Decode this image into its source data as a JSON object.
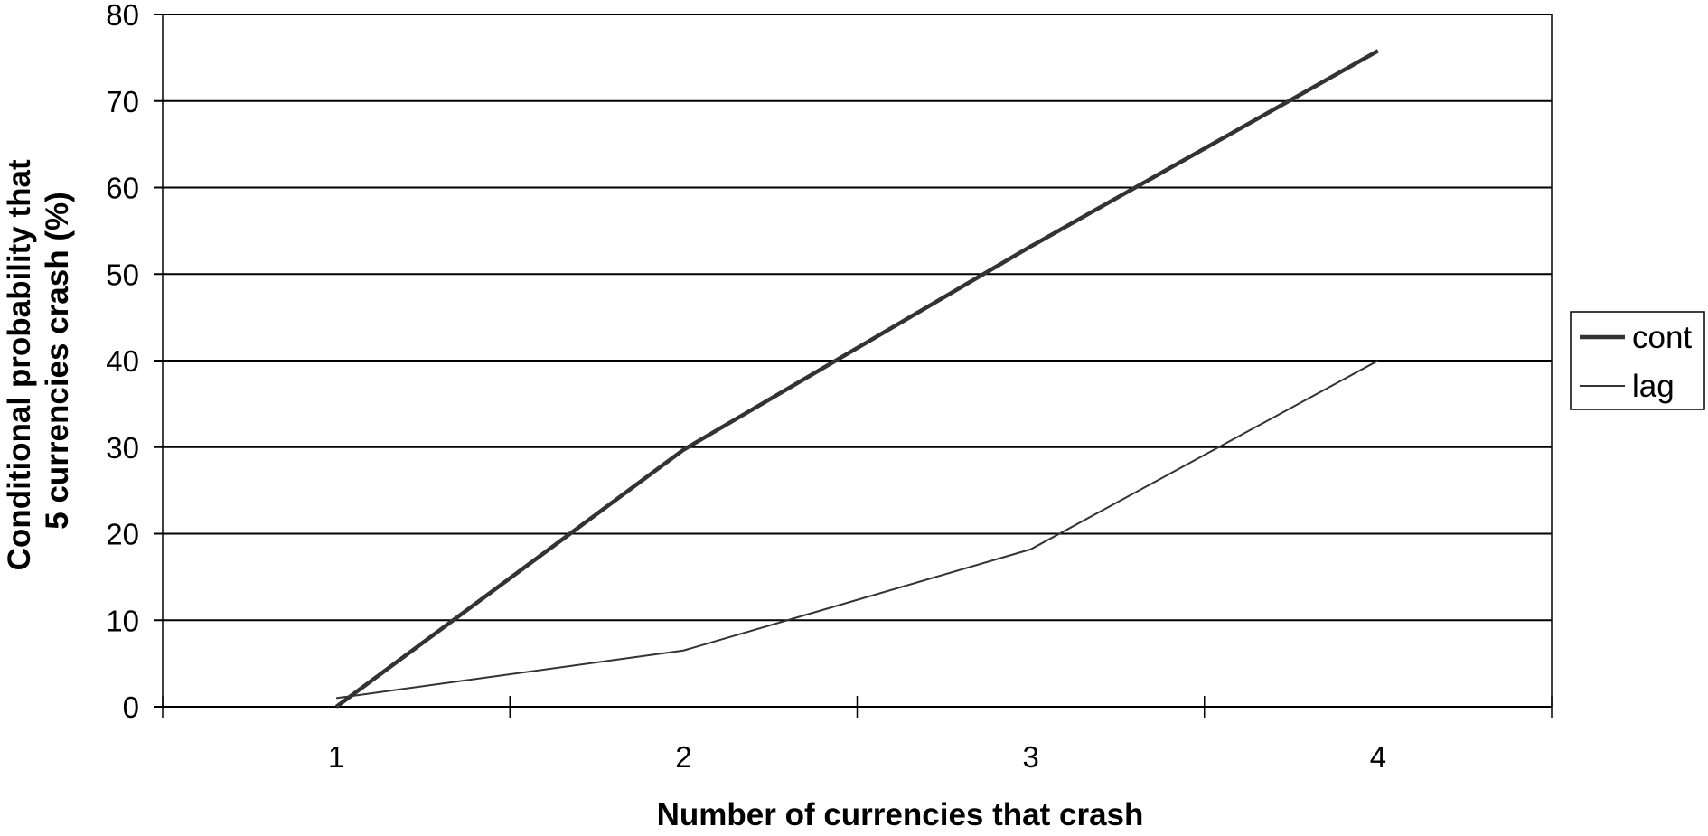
{
  "chart_data": {
    "type": "line",
    "title": "",
    "xlabel": "Number of currencies that crash",
    "ylabel": [
      "Conditional probability that",
      "5 currencies crash (%)"
    ],
    "x": [
      1,
      2,
      3,
      4
    ],
    "x_ticks": [
      "1",
      "2",
      "3",
      "4"
    ],
    "ylim": [
      0,
      80
    ],
    "y_ticks": [
      "0",
      "10",
      "20",
      "30",
      "40",
      "50",
      "60",
      "70",
      "80"
    ],
    "grid": "horizontal",
    "legend_position": "right",
    "series": [
      {
        "name": "cont",
        "values": [
          0,
          29.7,
          53.2,
          75.8
        ],
        "color": "#333333",
        "stroke": "thick"
      },
      {
        "name": "lag",
        "values": [
          1.0,
          6.5,
          18.2,
          40.0
        ],
        "color": "#333333",
        "stroke": "thin"
      }
    ]
  }
}
